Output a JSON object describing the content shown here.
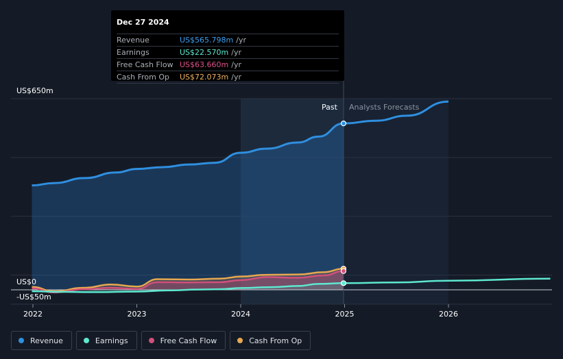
{
  "tooltip": {
    "date": "Dec 27 2024",
    "rows": [
      {
        "label": "Revenue",
        "value": "US$565.798m",
        "unit": "/yr",
        "color": "#3ea0f0"
      },
      {
        "label": "Earnings",
        "value": "US$22.570m",
        "unit": "/yr",
        "color": "#5ee8d0"
      },
      {
        "label": "Free Cash Flow",
        "value": "US$63.660m",
        "unit": "/yr",
        "color": "#e0508a"
      },
      {
        "label": "Cash From Op",
        "value": "US$72.073m",
        "unit": "/yr",
        "color": "#f0b060"
      }
    ]
  },
  "legend": [
    {
      "label": "Revenue",
      "color": "#2f8fe0"
    },
    {
      "label": "Earnings",
      "color": "#5ee8d0"
    },
    {
      "label": "Free Cash Flow",
      "color": "#d0507a"
    },
    {
      "label": "Cash From Op",
      "color": "#e8a850"
    }
  ],
  "chart_data": {
    "type": "area",
    "title": "",
    "y_labels": {
      "top": "US$650m",
      "zero": "US$0",
      "bottom": "-US$50m"
    },
    "ylim": [
      -50,
      650
    ],
    "xlim": [
      2021.9,
      2026.98
    ],
    "x_ticks": [
      "2022",
      "2023",
      "2024",
      "2025",
      "2026"
    ],
    "past_label": "Past",
    "forecast_label": "Analysts Forecasts",
    "past_end": 2024.99,
    "series": [
      {
        "name": "Revenue",
        "color": "#2f8fe0",
        "x": [
          2021.99,
          2022.2,
          2022.5,
          2022.8,
          2023.0,
          2023.25,
          2023.5,
          2023.75,
          2024.0,
          2024.25,
          2024.55,
          2024.75,
          2024.99
        ],
        "values": [
          355,
          363,
          380,
          399,
          411,
          417,
          426,
          432,
          466,
          480,
          501,
          521,
          565.8
        ],
        "forecast_x": [
          2024.99,
          2025.3,
          2025.6,
          2026.0
        ],
        "forecast_values": [
          565.8,
          575,
          592,
          640
        ]
      },
      {
        "name": "Earnings",
        "color": "#5ee8d0",
        "x": [
          2021.99,
          2022.3,
          2022.6,
          2023.0,
          2023.3,
          2023.6,
          2023.8,
          2024.0,
          2024.3,
          2024.55,
          2024.75,
          2024.99
        ],
        "values": [
          -5,
          -7,
          -8,
          -6,
          -2,
          1,
          2,
          6,
          9,
          13,
          20,
          22.57
        ],
        "forecast_x": [
          2024.99,
          2025.5,
          2026.0,
          2026.98
        ],
        "forecast_values": [
          22.57,
          25,
          31,
          38
        ]
      },
      {
        "name": "Free Cash Flow",
        "color": "#d0507a",
        "x": [
          2021.99,
          2022.2,
          2022.5,
          2022.75,
          2023.0,
          2023.2,
          2023.5,
          2023.8,
          2024.0,
          2024.25,
          2024.55,
          2024.8,
          2024.99
        ],
        "values": [
          5,
          -9,
          2,
          7,
          3,
          26,
          25,
          26,
          33,
          43,
          41,
          49,
          63.66
        ],
        "forecast_x": [],
        "forecast_values": []
      },
      {
        "name": "Cash From Op",
        "color": "#e8a850",
        "x": [
          2021.99,
          2022.2,
          2022.5,
          2022.75,
          2023.0,
          2023.2,
          2023.5,
          2023.8,
          2024.0,
          2024.25,
          2024.55,
          2024.8,
          2024.99
        ],
        "values": [
          10,
          -5,
          7,
          18,
          11,
          36,
          35,
          38,
          45,
          51,
          52,
          60,
          72.07
        ],
        "forecast_x": [],
        "forecast_values": []
      }
    ]
  }
}
